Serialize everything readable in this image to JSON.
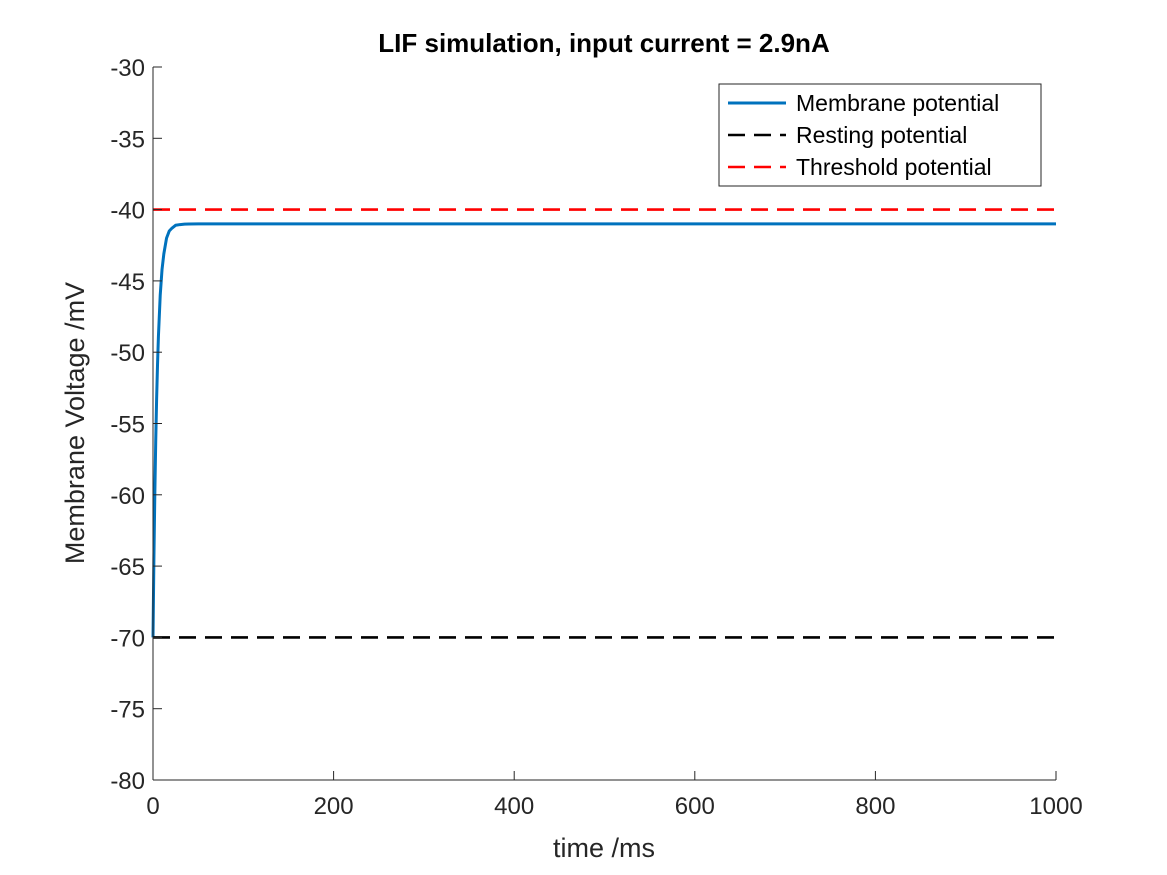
{
  "chart_data": {
    "type": "line",
    "title": "LIF simulation, input current = 2.9nA",
    "xlabel": "time /ms",
    "ylabel": "Membrane Voltage /mV",
    "xlim": [
      0,
      1000
    ],
    "ylim": [
      -80,
      -30
    ],
    "xticks": [
      0,
      200,
      400,
      600,
      800,
      1000
    ],
    "yticks": [
      -80,
      -75,
      -70,
      -65,
      -60,
      -55,
      -50,
      -45,
      -40,
      -35,
      -30
    ],
    "grid": false,
    "legend_position": "top-right",
    "series": [
      {
        "name": "Membrane potential",
        "style": "solid",
        "color": "#0072BD",
        "x": [
          0,
          1,
          2,
          3,
          4,
          5,
          6,
          8,
          10,
          12,
          15,
          18,
          21,
          25,
          30,
          35,
          40,
          50,
          60,
          70,
          80,
          100,
          150,
          200,
          300,
          400,
          500,
          600,
          700,
          800,
          900,
          1000
        ],
        "y": [
          -70,
          -64.5,
          -60.0,
          -56.3,
          -53.3,
          -50.9,
          -48.9,
          -46.0,
          -44.2,
          -43.1,
          -42.0,
          -41.5,
          -41.3,
          -41.1,
          -41.05,
          -41.02,
          -41.01,
          -41.0,
          -41.0,
          -41.0,
          -41.0,
          -41.0,
          -41.0,
          -41.0,
          -41.0,
          -41.0,
          -41.0,
          -41.0,
          -41.0,
          -41.0,
          -41.0,
          -41.0
        ]
      },
      {
        "name": "Resting potential",
        "style": "dashed",
        "color": "#000000",
        "x": [
          0,
          1000
        ],
        "y": [
          -70,
          -70
        ]
      },
      {
        "name": "Threshold potential",
        "style": "dashed",
        "color": "#FF0000",
        "x": [
          0,
          1000
        ],
        "y": [
          -40,
          -40
        ]
      }
    ]
  }
}
